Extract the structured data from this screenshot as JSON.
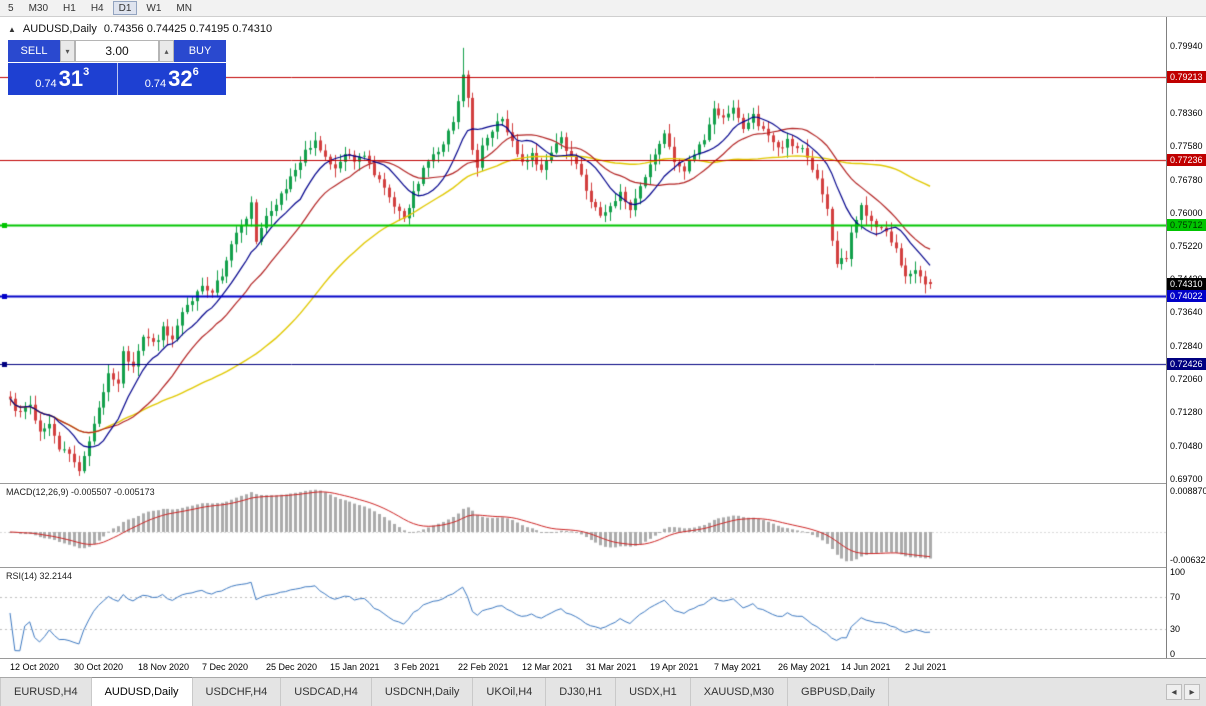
{
  "toolbar": {
    "timeframes": [
      "5",
      "M30",
      "H1",
      "H4",
      "D1",
      "W1",
      "MN"
    ],
    "active": "D1"
  },
  "symbol_header": {
    "icon": "▲",
    "title": "AUDUSD,Daily",
    "ohlc": "0.74356 0.74425 0.74195 0.74310"
  },
  "trade_panel": {
    "sell_label": "SELL",
    "buy_label": "BUY",
    "volume": "3.00",
    "down_arrow": "▾",
    "up_arrow": "▴",
    "sell_price_small": "0.74",
    "sell_price_big": "31",
    "sell_price_sup": "3",
    "buy_price_small": "0.74",
    "buy_price_big": "32",
    "buy_price_sup": "6",
    "colors": {
      "button_blue": "#2A49CF",
      "panel_blue": "#1E40D2"
    }
  },
  "indicators": {
    "macd_title": "MACD(12,26,9) -0.005507 -0.005173",
    "rsi_title": "RSI(14) 32.2144"
  },
  "axis": {
    "main_ticks": [
      "0.79940",
      "0.78360",
      "0.77580",
      "0.76780",
      "0.76000",
      "0.75220",
      "0.74430",
      "0.73640",
      "0.72840",
      "0.72060",
      "0.71280",
      "0.70480",
      "0.69700"
    ],
    "price_levels": [
      {
        "price": 0.79213,
        "label": "0.79213",
        "color": "#C00000",
        "text_color": "#FFFFFF",
        "line_width": 1,
        "handle": false
      },
      {
        "price": 0.77236,
        "label": "0.77236",
        "color": "#C00000",
        "text_color": "#FFFFFF",
        "line_width": 1,
        "handle": false
      },
      {
        "price": 0.75712,
        "label": "0.75712",
        "color": "#00C400",
        "text_color": "#003300",
        "line_width": 2,
        "handle": true
      },
      {
        "price": 0.74022,
        "label": "0.74022",
        "color": "#0000C8",
        "text_color": "#FFFFFF",
        "line_width": 2,
        "handle": true
      },
      {
        "price": 0.72426,
        "label": "0.72426",
        "color": "#000080",
        "text_color": "#FFFFFF",
        "line_width": 1,
        "handle": true
      }
    ],
    "current_price": {
      "price": 0.7431,
      "label": "0.74310",
      "color": "#000000",
      "text_color": "#FFFFFF"
    },
    "macd_max_label": "0.008870",
    "macd_min_label": "-0.00632",
    "rsi_ticks": [
      "100",
      "70",
      "30",
      "0"
    ]
  },
  "tabs": {
    "items": [
      "EURUSD,H4",
      "AUDUSD,Daily",
      "USDCHF,H4",
      "USDCAD,H4",
      "USDCNH,Daily",
      "UKOil,H4",
      "DJ30,H1",
      "USDX,H1",
      "XAUUSD,M30",
      "GBPUSD,Daily"
    ],
    "active": "AUDUSD,Daily",
    "left_arrow": "◂",
    "right_arrow": "▸"
  },
  "chart_data": {
    "type": "candlestick",
    "symbol": "AUDUSD",
    "timeframe": "Daily",
    "price_range": {
      "min": 0.696,
      "max": 0.8063
    },
    "total_bars": 188,
    "label_every_n_bars": 13,
    "date_labels": [
      "12 Oct 2020",
      "30 Oct 2020",
      "18 Nov 2020",
      "7 Dec 2020",
      "25 Dec 2020",
      "15 Jan 2021",
      "3 Feb 2021",
      "22 Feb 2021",
      "12 Mar 2021",
      "31 Mar 2021",
      "19 Apr 2021",
      "7 May 2021",
      "26 May 2021",
      "14 Jun 2021",
      "2 Jul 2021"
    ],
    "last_candle": {
      "open": 0.74356,
      "high": 0.74425,
      "low": 0.74195,
      "close": 0.7431
    },
    "spike": {
      "bar": 92,
      "high": 0.799
    },
    "close_anchors": [
      [
        0,
        0.7155
      ],
      [
        2,
        0.712
      ],
      [
        4,
        0.7148
      ],
      [
        6,
        0.7078
      ],
      [
        8,
        0.7108
      ],
      [
        10,
        0.7042
      ],
      [
        12,
        0.7022
      ],
      [
        14,
        0.6985
      ],
      [
        16,
        0.7058
      ],
      [
        18,
        0.713
      ],
      [
        20,
        0.7228
      ],
      [
        22,
        0.7192
      ],
      [
        23,
        0.7268
      ],
      [
        25,
        0.7238
      ],
      [
        27,
        0.7302
      ],
      [
        29,
        0.7288
      ],
      [
        31,
        0.7322
      ],
      [
        33,
        0.7306
      ],
      [
        35,
        0.7365
      ],
      [
        37,
        0.7398
      ],
      [
        39,
        0.742
      ],
      [
        41,
        0.7406
      ],
      [
        43,
        0.7455
      ],
      [
        45,
        0.7532
      ],
      [
        47,
        0.7562
      ],
      [
        49,
        0.7618
      ],
      [
        50,
        0.7528
      ],
      [
        52,
        0.7585
      ],
      [
        54,
        0.7622
      ],
      [
        56,
        0.7655
      ],
      [
        58,
        0.7702
      ],
      [
        60,
        0.7748
      ],
      [
        62,
        0.7772
      ],
      [
        64,
        0.7736
      ],
      [
        66,
        0.7702
      ],
      [
        68,
        0.7745
      ],
      [
        70,
        0.7712
      ],
      [
        72,
        0.7742
      ],
      [
        74,
        0.7692
      ],
      [
        76,
        0.7655
      ],
      [
        78,
        0.7608
      ],
      [
        80,
        0.7595
      ],
      [
        82,
        0.7642
      ],
      [
        84,
        0.7702
      ],
      [
        86,
        0.7738
      ],
      [
        88,
        0.7762
      ],
      [
        90,
        0.7812
      ],
      [
        91,
        0.7868
      ],
      [
        92,
        0.7928
      ],
      [
        93,
        0.7868
      ],
      [
        94,
        0.7752
      ],
      [
        95,
        0.7712
      ],
      [
        96,
        0.7762
      ],
      [
        98,
        0.7792
      ],
      [
        100,
        0.7825
      ],
      [
        102,
        0.7762
      ],
      [
        104,
        0.7712
      ],
      [
        106,
        0.7745
      ],
      [
        108,
        0.7698
      ],
      [
        110,
        0.775
      ],
      [
        112,
        0.7772
      ],
      [
        114,
        0.7732
      ],
      [
        116,
        0.769
      ],
      [
        118,
        0.7622
      ],
      [
        120,
        0.7586
      ],
      [
        122,
        0.7615
      ],
      [
        124,
        0.7642
      ],
      [
        126,
        0.7606
      ],
      [
        128,
        0.7656
      ],
      [
        130,
        0.7722
      ],
      [
        132,
        0.7756
      ],
      [
        133,
        0.7788
      ],
      [
        135,
        0.7726
      ],
      [
        137,
        0.7702
      ],
      [
        139,
        0.7746
      ],
      [
        141,
        0.7772
      ],
      [
        143,
        0.784
      ],
      [
        145,
        0.783
      ],
      [
        147,
        0.7846
      ],
      [
        149,
        0.7802
      ],
      [
        151,
        0.7832
      ],
      [
        153,
        0.7792
      ],
      [
        155,
        0.7762
      ],
      [
        156,
        0.7746
      ],
      [
        158,
        0.7772
      ],
      [
        160,
        0.7756
      ],
      [
        162,
        0.7732
      ],
      [
        164,
        0.7682
      ],
      [
        166,
        0.7612
      ],
      [
        167,
        0.7542
      ],
      [
        168,
        0.7482
      ],
      [
        170,
        0.7496
      ],
      [
        171,
        0.7558
      ],
      [
        173,
        0.7616
      ],
      [
        175,
        0.7582
      ],
      [
        177,
        0.7562
      ],
      [
        179,
        0.7532
      ],
      [
        181,
        0.7482
      ],
      [
        182,
        0.7446
      ],
      [
        184,
        0.7468
      ],
      [
        186,
        0.7432
      ],
      [
        187,
        0.7431
      ]
    ],
    "colors": {
      "up": "#13A04B",
      "down": "#D23F3F",
      "background": "#FFFFFF"
    },
    "moving_averages": [
      {
        "period": 50,
        "color": "#E0C800",
        "width": 1.4
      },
      {
        "period": 20,
        "color": "#B22222",
        "width": 1.2
      },
      {
        "period": 10,
        "color": "#00008B",
        "width": 1.2
      }
    ],
    "macd": {
      "fast": 12,
      "slow": 26,
      "signal_period": 9,
      "value": -0.005507,
      "signal_value": -0.005173,
      "hist_color": "#ABABAB",
      "signal_color": "#CC2222",
      "axis_max": 0.00887,
      "axis_min": -0.00632
    },
    "rsi": {
      "period": 14,
      "value": 32.2144,
      "color": "#3C78C0",
      "levels": [
        70,
        30
      ]
    }
  }
}
